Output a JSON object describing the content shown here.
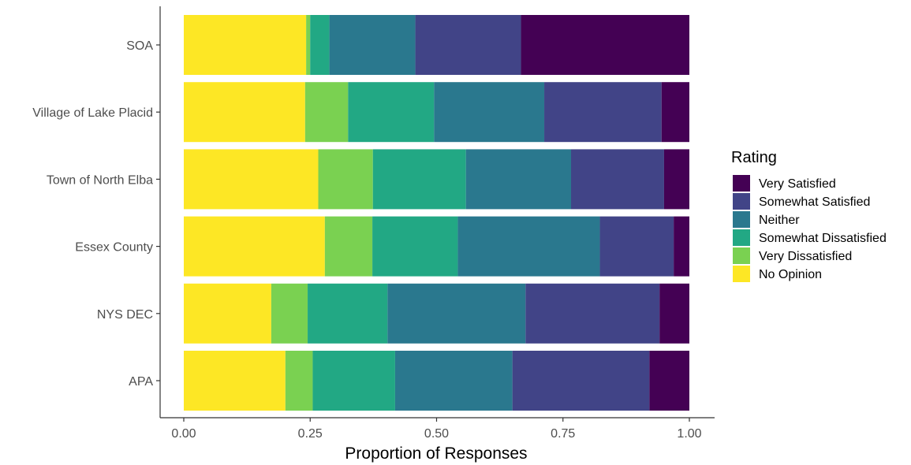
{
  "chart_data": {
    "type": "bar",
    "orientation": "horizontal",
    "stacked": true,
    "categories": [
      "SOA",
      "Village of Lake Placid",
      "Town of North Elba",
      "Essex County",
      "NYS DEC",
      "APA"
    ],
    "series": [
      {
        "name": "No Opinion",
        "color": "#FDE725",
        "values": [
          0.242,
          0.24,
          0.266,
          0.279,
          0.173,
          0.201
        ]
      },
      {
        "name": "Very Dissatisfied",
        "color": "#7AD151",
        "values": [
          0.008,
          0.085,
          0.108,
          0.094,
          0.072,
          0.054
        ]
      },
      {
        "name": "Somewhat Dissatisfied",
        "color": "#22A884",
        "values": [
          0.038,
          0.17,
          0.184,
          0.169,
          0.158,
          0.163
        ]
      },
      {
        "name": "Neither",
        "color": "#2A788E",
        "values": [
          0.17,
          0.218,
          0.208,
          0.281,
          0.273,
          0.232
        ]
      },
      {
        "name": "Somewhat Satisfied",
        "color": "#414487",
        "values": [
          0.209,
          0.232,
          0.184,
          0.146,
          0.265,
          0.271
        ]
      },
      {
        "name": "Very Satisfied",
        "color": "#440154",
        "values": [
          0.333,
          0.055,
          0.05,
          0.031,
          0.059,
          0.079
        ]
      }
    ],
    "legend_order": [
      "Very Satisfied",
      "Somewhat Satisfied",
      "Neither",
      "Somewhat Dissatisfied",
      "Very Dissatisfied",
      "No Opinion"
    ],
    "legend_title": "Rating",
    "legend_position": "right",
    "title": "",
    "xlabel": "Proportion of Responses",
    "ylabel": "",
    "xlim": [
      0,
      1
    ],
    "xticks": [
      0,
      0.25,
      0.5,
      0.75,
      1.0
    ],
    "xtick_labels": [
      "0.00",
      "0.25",
      "0.50",
      "0.75",
      "1.00"
    ],
    "grid": false
  }
}
